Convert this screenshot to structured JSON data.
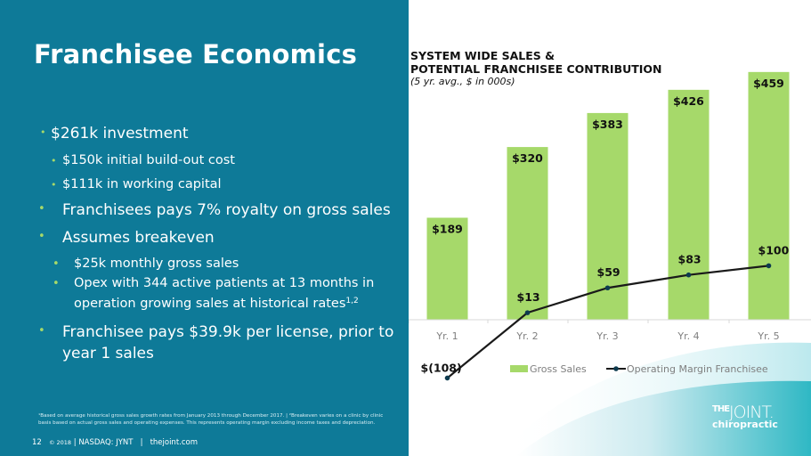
{
  "page": {
    "title": "Franchisee Economics",
    "bullets": [
      {
        "level": 1,
        "text": "$261k investment",
        "style": "small-dot"
      },
      {
        "level": 2,
        "text": "$150k initial build-out cost"
      },
      {
        "level": 2,
        "text": "$111k in working capital"
      },
      {
        "level": 1,
        "text": "Franchisees pays 7% royalty on gross sales"
      },
      {
        "level": 1,
        "text": "Assumes breakeven"
      },
      {
        "level": 3,
        "text": "$25k monthly gross sales"
      },
      {
        "level": 3,
        "text": "Opex with 344 active patients at 13 months in"
      },
      {
        "level": 3,
        "text": "operation growing sales at historical rates",
        "sup": "1,2",
        "continuation": true
      },
      {
        "level": 1,
        "text": "Franchisee pays $39.9k per license, prior to"
      },
      {
        "level": 1,
        "text": "year 1 sales",
        "continuation": true
      }
    ],
    "footnote_line1": "¹Based on average historical gross sales growth rates from January 2013 through December 2017.  |  ²Breakeven varies on a clinic by clinic",
    "footnote_line2": "basis based on actual gross sales and operating expenses. This represents operating margin excluding income taxes and depreciation.",
    "footer": {
      "page_number": "12",
      "copyright": "© 2018",
      "ticker": "NASDAQ: JYNT",
      "website": "thejoint.com",
      "sep": "|"
    },
    "logo": {
      "line1_small": "THE",
      "line1": "JOINT.",
      "line2": "chiropractic"
    },
    "colors": {
      "panel": "#0e7a98",
      "bar": "#a6d96a",
      "line": "#1a1a1a",
      "marker": "#0d3b4f",
      "bullet_dot": "#a6d96a"
    }
  },
  "chart_data": {
    "type": "bar",
    "title_line1": "SYSTEM WIDE SALES &",
    "title_line2": "POTENTIAL FRANCHISEE CONTRIBUTION",
    "subtitle": "(5 yr. avg., $ in 000s)",
    "categories": [
      "Yr. 1",
      "Yr. 2",
      "Yr. 3",
      "Yr. 4",
      "Yr. 5"
    ],
    "series": [
      {
        "name": "Gross Sales",
        "type": "bar",
        "values": [
          189,
          320,
          383,
          426,
          459
        ],
        "labels": [
          "$189",
          "$320",
          "$383",
          "$426",
          "$459"
        ]
      },
      {
        "name": "Operating Margin Franchisee",
        "type": "line",
        "values": [
          -108,
          13,
          59,
          83,
          100
        ],
        "labels": [
          "$(108)",
          "$13",
          "$59",
          "$83",
          "$100"
        ]
      }
    ],
    "ylim": [
      -108,
      459
    ],
    "grid": false,
    "legend": "bottom",
    "xlabel": "",
    "ylabel": ""
  }
}
